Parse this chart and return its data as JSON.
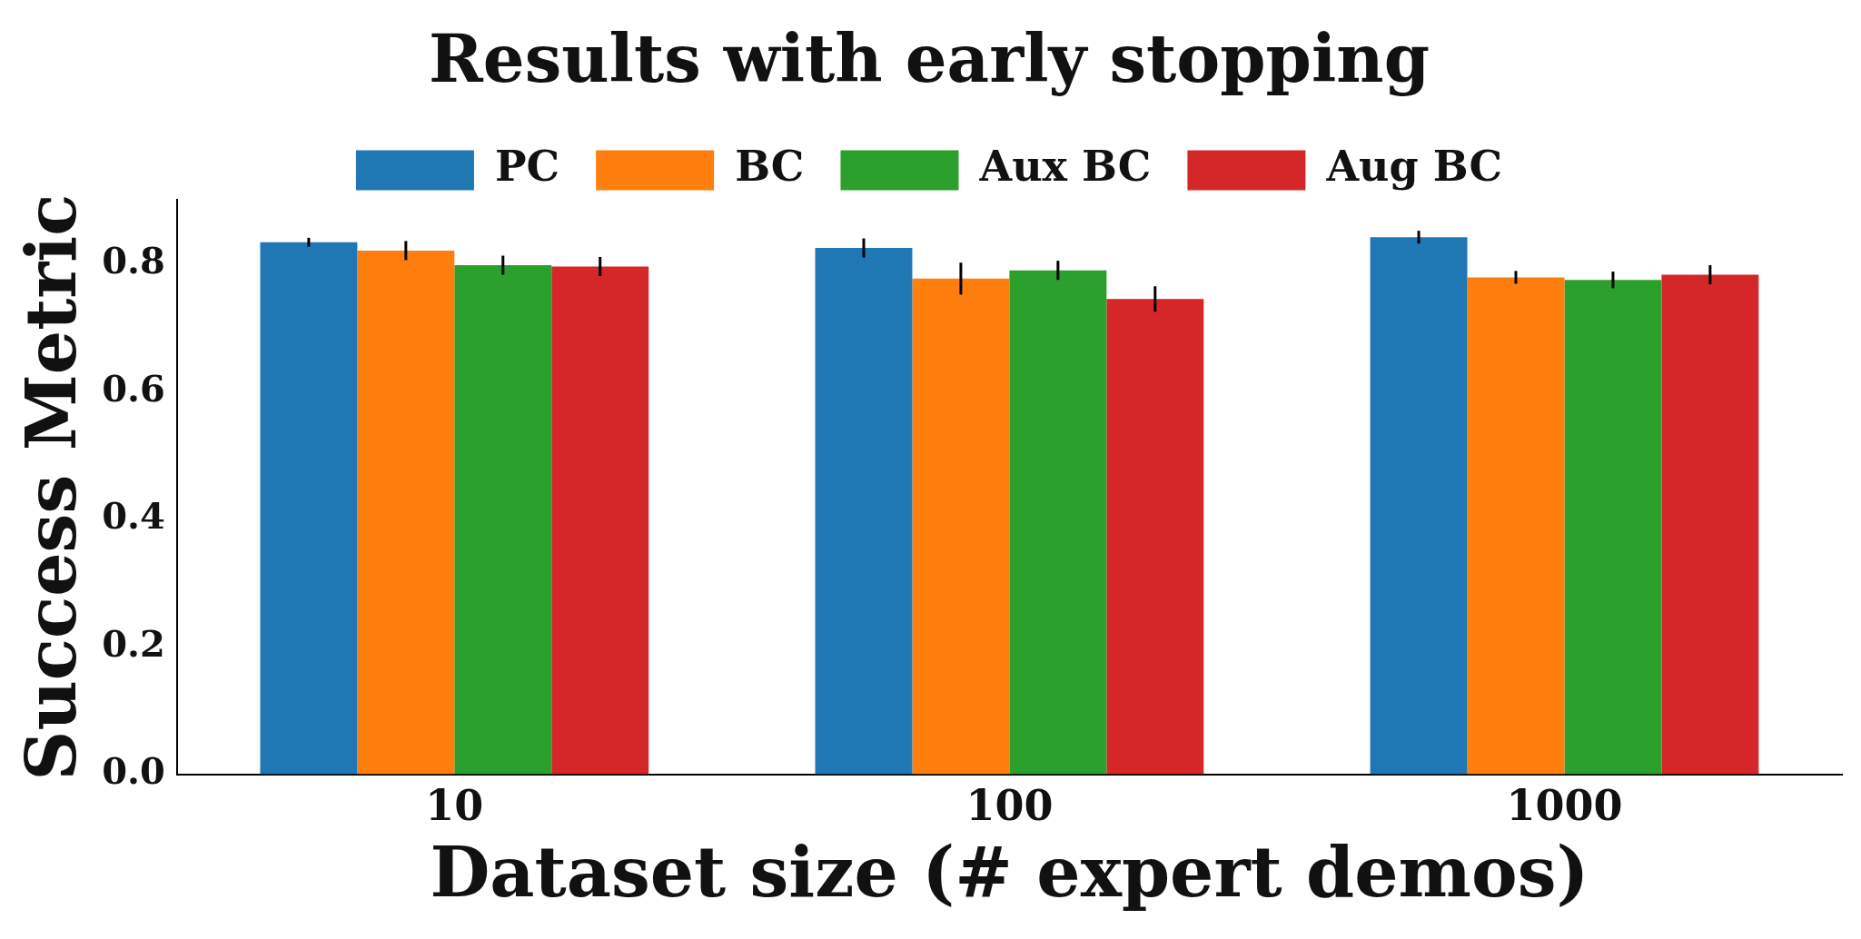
{
  "chart_data": {
    "type": "bar",
    "title": "Results with early stopping",
    "xlabel": "Dataset size (# expert demos)",
    "ylabel": "Success Metric",
    "categories": [
      "10",
      "100",
      "1000"
    ],
    "series": [
      {
        "name": "PC",
        "color": "#1f77b4",
        "values": [
          0.834,
          0.825,
          0.842
        ],
        "errors": [
          0.007,
          0.015,
          0.01
        ]
      },
      {
        "name": "BC",
        "color": "#ff7f0e",
        "values": [
          0.821,
          0.777,
          0.779
        ],
        "errors": [
          0.015,
          0.025,
          0.01
        ]
      },
      {
        "name": "Aux BC",
        "color": "#2ca02c",
        "values": [
          0.798,
          0.79,
          0.775
        ],
        "errors": [
          0.015,
          0.015,
          0.013
        ]
      },
      {
        "name": "Aug BC",
        "color": "#d62728",
        "values": [
          0.796,
          0.745,
          0.783
        ],
        "errors": [
          0.015,
          0.02,
          0.015
        ]
      }
    ],
    "ylim": [
      0,
      0.9
    ],
    "yticks": [
      {
        "value": 0,
        "label": "0.0"
      },
      {
        "value": 0.2,
        "label": "0.2"
      },
      {
        "value": 0.4,
        "label": "0.4"
      },
      {
        "value": 0.6,
        "label": "0.6"
      },
      {
        "value": 0.8,
        "label": "0.8"
      }
    ],
    "grid": false,
    "legend": "top"
  }
}
